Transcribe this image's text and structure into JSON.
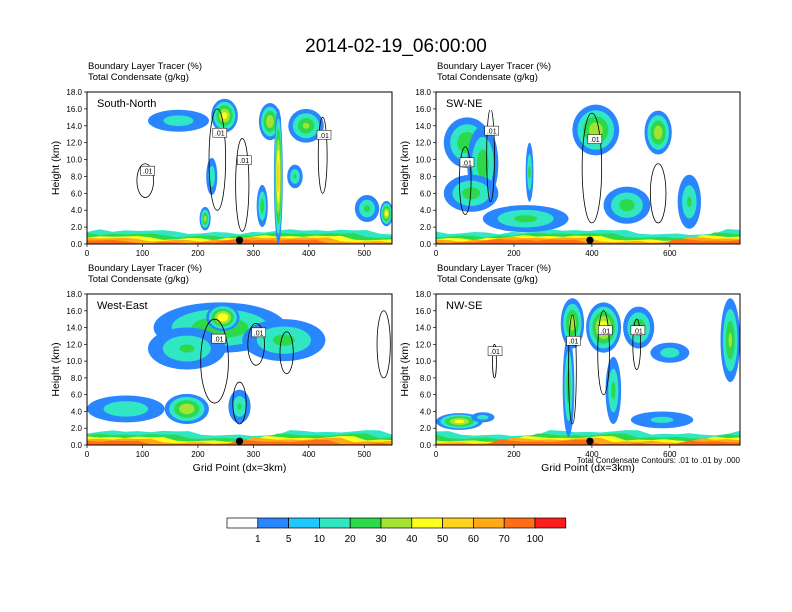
{
  "title": "2014-02-19_06:00:00",
  "chart_data": [
    {
      "type": "heatmap",
      "panel": "South-North",
      "header_line1": "Boundary Layer Tracer   (%)",
      "header_line2": "Total Condensate   (g/kg)",
      "ylabel": "Height (km)",
      "xlabel": "",
      "xlim": [
        0,
        550
      ],
      "ylim": [
        0,
        18
      ],
      "xticks": [
        0,
        100,
        200,
        300,
        400,
        500
      ],
      "yticks": [
        "0.0",
        "2.0",
        "4.0",
        "6.0",
        "8.0",
        "10.0",
        "12.0",
        "14.0",
        "16.0",
        "18.0"
      ],
      "marker_x": 275,
      "contour_labels": [
        ".01",
        ".01",
        ".01",
        ".01",
        ".01"
      ],
      "blobs": [
        {
          "x": 165,
          "y": 14.6,
          "rx": 55,
          "ry": 1.3,
          "v": 15
        },
        {
          "x": 248,
          "y": 15.2,
          "rx": 24,
          "ry": 2.0,
          "v": 42
        },
        {
          "x": 330,
          "y": 14.5,
          "rx": 20,
          "ry": 2.2,
          "v": 38
        },
        {
          "x": 395,
          "y": 14.0,
          "rx": 32,
          "ry": 2.0,
          "v": 30
        },
        {
          "x": 345,
          "y": 8.0,
          "rx": 8,
          "ry": 8.0,
          "v": 55
        },
        {
          "x": 316,
          "y": 4.5,
          "rx": 10,
          "ry": 2.5,
          "v": 25
        },
        {
          "x": 225,
          "y": 8.0,
          "rx": 10,
          "ry": 2.2,
          "v": 18
        },
        {
          "x": 213,
          "y": 3.0,
          "rx": 10,
          "ry": 1.4,
          "v": 33
        },
        {
          "x": 375,
          "y": 8.0,
          "rx": 14,
          "ry": 1.4,
          "v": 20
        },
        {
          "x": 505,
          "y": 4.2,
          "rx": 22,
          "ry": 1.6,
          "v": 22
        },
        {
          "x": 540,
          "y": 3.6,
          "rx": 12,
          "ry": 1.5,
          "v": 42
        }
      ],
      "contours": [
        {
          "x": 105,
          "y": 7.5,
          "rx": 15,
          "ry": 2.0
        },
        {
          "x": 235,
          "y": 10.0,
          "rx": 15,
          "ry": 6.0
        },
        {
          "x": 280,
          "y": 7.0,
          "rx": 12,
          "ry": 5.5
        },
        {
          "x": 425,
          "y": 10.5,
          "rx": 8,
          "ry": 4.5
        }
      ]
    },
    {
      "type": "heatmap",
      "panel": "SW-NE",
      "header_line1": "Boundary Layer Tracer   (%)",
      "header_line2": "Total Condensate   (g/kg)",
      "ylabel": "Height (km)",
      "xlabel": "",
      "xlim": [
        0,
        780
      ],
      "ylim": [
        0,
        18
      ],
      "xticks": [
        0,
        200,
        400,
        600
      ],
      "yticks": [
        "0.0",
        "2.0",
        "4.0",
        "6.0",
        "8.0",
        "10.0",
        "12.0",
        "14.0",
        "16.0",
        "18.0"
      ],
      "marker_x": 395,
      "contour_labels": [
        ".01",
        ".01",
        ".01"
      ],
      "blobs": [
        {
          "x": 80,
          "y": 12.0,
          "rx": 60,
          "ry": 3.0,
          "v": 28
        },
        {
          "x": 120,
          "y": 9.5,
          "rx": 40,
          "ry": 4.5,
          "v": 26
        },
        {
          "x": 90,
          "y": 6.0,
          "rx": 70,
          "ry": 2.2,
          "v": 24
        },
        {
          "x": 230,
          "y": 3.0,
          "rx": 110,
          "ry": 1.6,
          "v": 22
        },
        {
          "x": 410,
          "y": 13.5,
          "rx": 60,
          "ry": 3.0,
          "v": 35
        },
        {
          "x": 570,
          "y": 13.2,
          "rx": 35,
          "ry": 2.6,
          "v": 36
        },
        {
          "x": 490,
          "y": 4.6,
          "rx": 60,
          "ry": 2.2,
          "v": 24
        },
        {
          "x": 650,
          "y": 5.0,
          "rx": 30,
          "ry": 3.2,
          "v": 20
        },
        {
          "x": 240,
          "y": 8.5,
          "rx": 10,
          "ry": 3.5,
          "v": 20
        }
      ],
      "contours": [
        {
          "x": 75,
          "y": 7.5,
          "rx": 15,
          "ry": 4.0
        },
        {
          "x": 140,
          "y": 10.5,
          "rx": 10,
          "ry": 5.5
        },
        {
          "x": 400,
          "y": 9.0,
          "rx": 25,
          "ry": 6.5
        },
        {
          "x": 570,
          "y": 6.0,
          "rx": 20,
          "ry": 3.5
        }
      ]
    },
    {
      "type": "heatmap",
      "panel": "West-East",
      "header_line1": "Boundary Layer Tracer   (%)",
      "header_line2": "Total Condensate   (g/kg)",
      "ylabel": "Height (km)",
      "xlabel": "Grid Point (dx=3km)",
      "xlim": [
        0,
        550
      ],
      "ylim": [
        0,
        18
      ],
      "xticks": [
        0,
        100,
        200,
        300,
        400,
        500
      ],
      "yticks": [
        "0.0",
        "2.0",
        "4.0",
        "6.0",
        "8.0",
        "10.0",
        "12.0",
        "14.0",
        "16.0",
        "18.0"
      ],
      "marker_x": 275,
      "contour_labels": [
        ".01",
        ".01"
      ],
      "blobs": [
        {
          "x": 240,
          "y": 14.0,
          "rx": 120,
          "ry": 3.0,
          "v": 28
        },
        {
          "x": 355,
          "y": 12.5,
          "rx": 75,
          "ry": 2.5,
          "v": 22
        },
        {
          "x": 180,
          "y": 11.5,
          "rx": 70,
          "ry": 2.5,
          "v": 20
        },
        {
          "x": 245,
          "y": 15.2,
          "rx": 30,
          "ry": 1.6,
          "v": 48
        },
        {
          "x": 70,
          "y": 4.3,
          "rx": 70,
          "ry": 1.6,
          "v": 18
        },
        {
          "x": 180,
          "y": 4.3,
          "rx": 40,
          "ry": 1.8,
          "v": 38
        },
        {
          "x": 275,
          "y": 4.6,
          "rx": 20,
          "ry": 2.0,
          "v": 20
        }
      ],
      "contours": [
        {
          "x": 230,
          "y": 10.0,
          "rx": 25,
          "ry": 5.0
        },
        {
          "x": 305,
          "y": 12.0,
          "rx": 15,
          "ry": 2.5
        },
        {
          "x": 360,
          "y": 11.0,
          "rx": 12,
          "ry": 2.5
        },
        {
          "x": 535,
          "y": 12.0,
          "rx": 12,
          "ry": 4.0
        },
        {
          "x": 275,
          "y": 5.0,
          "rx": 12,
          "ry": 2.5
        }
      ]
    },
    {
      "type": "heatmap",
      "panel": "NW-SE",
      "header_line1": "Boundary Layer Tracer   (%)",
      "header_line2": "Total Condensate   (g/kg)",
      "ylabel": "Height (km)",
      "xlabel": "Grid Point (dx=3km)",
      "footnote": "Total Condensate Contours: .01 to .01 by .000",
      "xlim": [
        0,
        780
      ],
      "ylim": [
        0,
        18
      ],
      "xticks": [
        0,
        200,
        400,
        600
      ],
      "yticks": [
        "0.0",
        "2.0",
        "4.0",
        "6.0",
        "8.0",
        "10.0",
        "12.0",
        "14.0",
        "16.0",
        "18.0"
      ],
      "marker_x": 395,
      "contour_labels": [
        ".01",
        ".01",
        ".01",
        ".01"
      ],
      "blobs": [
        {
          "x": 350,
          "y": 14.5,
          "rx": 30,
          "ry": 3.0,
          "v": 35
        },
        {
          "x": 430,
          "y": 14.0,
          "rx": 45,
          "ry": 3.0,
          "v": 45
        },
        {
          "x": 520,
          "y": 14.0,
          "rx": 40,
          "ry": 2.5,
          "v": 28
        },
        {
          "x": 600,
          "y": 11.0,
          "rx": 50,
          "ry": 1.2,
          "v": 15
        },
        {
          "x": 755,
          "y": 12.5,
          "rx": 25,
          "ry": 5.0,
          "v": 30
        },
        {
          "x": 340,
          "y": 7.0,
          "rx": 15,
          "ry": 6.0,
          "v": 25
        },
        {
          "x": 455,
          "y": 6.5,
          "rx": 20,
          "ry": 4.0,
          "v": 22
        },
        {
          "x": 60,
          "y": 2.8,
          "rx": 60,
          "ry": 1.0,
          "v": 42
        },
        {
          "x": 120,
          "y": 3.3,
          "rx": 30,
          "ry": 0.6,
          "v": 15
        },
        {
          "x": 580,
          "y": 3.0,
          "rx": 80,
          "ry": 1.0,
          "v": 12
        }
      ],
      "contours": [
        {
          "x": 350,
          "y": 9.0,
          "rx": 10,
          "ry": 6.5
        },
        {
          "x": 430,
          "y": 11.0,
          "rx": 15,
          "ry": 5.0
        },
        {
          "x": 515,
          "y": 12.0,
          "rx": 10,
          "ry": 3.0
        },
        {
          "x": 150,
          "y": 10.0,
          "rx": 5,
          "ry": 2.0
        }
      ]
    }
  ],
  "colorbar": {
    "colors": [
      "#ffffff",
      "#2a86ff",
      "#1fc8ff",
      "#31e6c2",
      "#2bd94b",
      "#a2e334",
      "#ffff1e",
      "#ffd21e",
      "#ffaa14",
      "#ff6e14",
      "#ff1e1e"
    ],
    "labels": [
      "1",
      "5",
      "10",
      "20",
      "30",
      "40",
      "50",
      "60",
      "70",
      "100"
    ]
  }
}
